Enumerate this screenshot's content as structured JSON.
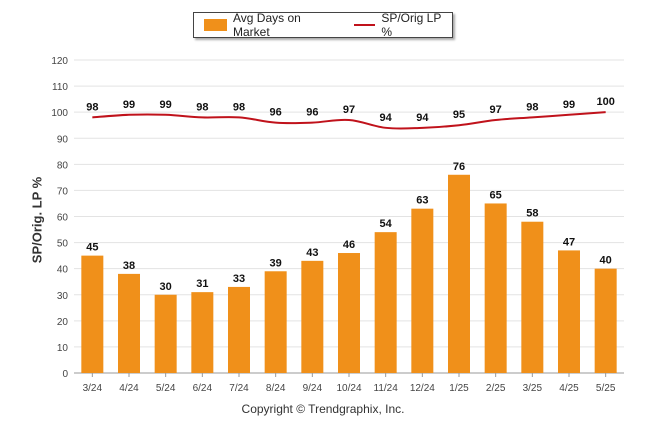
{
  "chart_data": {
    "type": "bar",
    "categories": [
      "3/24",
      "4/24",
      "5/24",
      "6/24",
      "7/24",
      "8/24",
      "9/24",
      "10/24",
      "11/24",
      "12/24",
      "1/25",
      "2/25",
      "3/25",
      "4/25",
      "5/25"
    ],
    "series": [
      {
        "name": "Avg Days on Market",
        "type": "bar",
        "color": "#f0901a",
        "values": [
          45,
          38,
          30,
          31,
          33,
          39,
          43,
          46,
          54,
          63,
          76,
          65,
          58,
          47,
          40
        ]
      },
      {
        "name": "SP/Orig LP %",
        "type": "line",
        "color": "#c0121b",
        "values": [
          98,
          99,
          99,
          98,
          98,
          96,
          96,
          97,
          94,
          94,
          95,
          97,
          98,
          99,
          100
        ]
      }
    ],
    "ylabel": "SP/Orig. LP %",
    "ylim": [
      0,
      120
    ],
    "yticks": [
      0,
      10,
      20,
      30,
      40,
      50,
      60,
      70,
      80,
      90,
      100,
      110,
      120
    ],
    "grid": true,
    "legend_position": "top-center"
  },
  "copyright": "Copyright © Trendgraphix, Inc."
}
